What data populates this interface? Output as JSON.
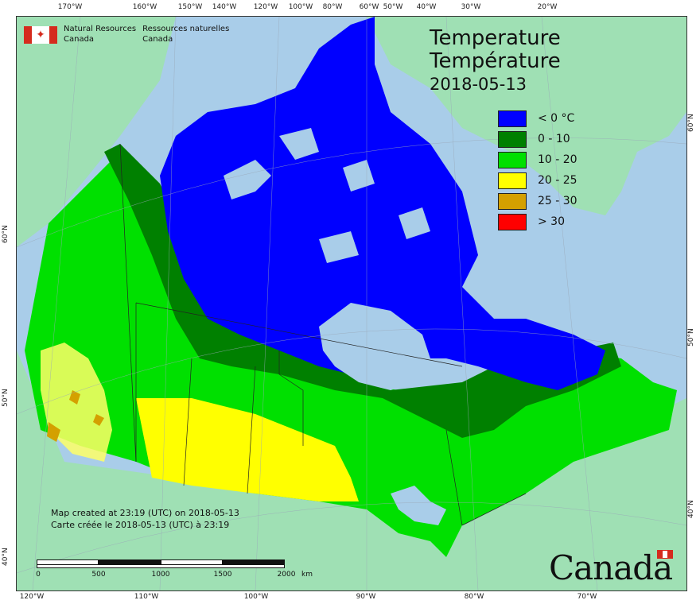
{
  "agency": {
    "line1_en": "Natural Resources",
    "line2_en": "Canada",
    "line1_fr": "Ressources naturelles",
    "line2_fr": "Canada"
  },
  "title": {
    "line1": "Temperature",
    "line2": "Température",
    "date": "2018-05-13"
  },
  "legend": [
    {
      "label": "< 0 °C",
      "color": "#0000ff"
    },
    {
      "label": "0 - 10",
      "color": "#008000"
    },
    {
      "label": "10 - 20",
      "color": "#00e000"
    },
    {
      "label": "20 - 25",
      "color": "#ffff00"
    },
    {
      "label": "25 - 30",
      "color": "#d4a000"
    },
    {
      "label": "> 30",
      "color": "#ff0000"
    }
  ],
  "credits": {
    "line1": "Map created at 23:19 (UTC) on 2018-05-13",
    "line2": "Carte créée le 2018-05-13 (UTC) à 23:19"
  },
  "scale": {
    "labels": [
      "0",
      "500",
      "1000",
      "1500",
      "2000"
    ],
    "unit": "km"
  },
  "ticks": {
    "top": [
      "170°W",
      "160°W",
      "150°W",
      "140°W",
      "120°W",
      "100°W",
      "80°W",
      "60°W",
      "50°W",
      "40°W",
      "30°W",
      "20°W"
    ],
    "bottom": [
      "120°W",
      "110°W",
      "100°W",
      "90°W",
      "80°W",
      "70°W"
    ],
    "left": [
      "60°N",
      "50°N",
      "40°N"
    ],
    "right": [
      "60°N",
      "50°N",
      "40°N"
    ]
  },
  "wordmark": "Canada",
  "colors": {
    "ocean": "#a9cde9",
    "foreign_land": "#9fe0b4",
    "lake": "#a9cde9"
  }
}
